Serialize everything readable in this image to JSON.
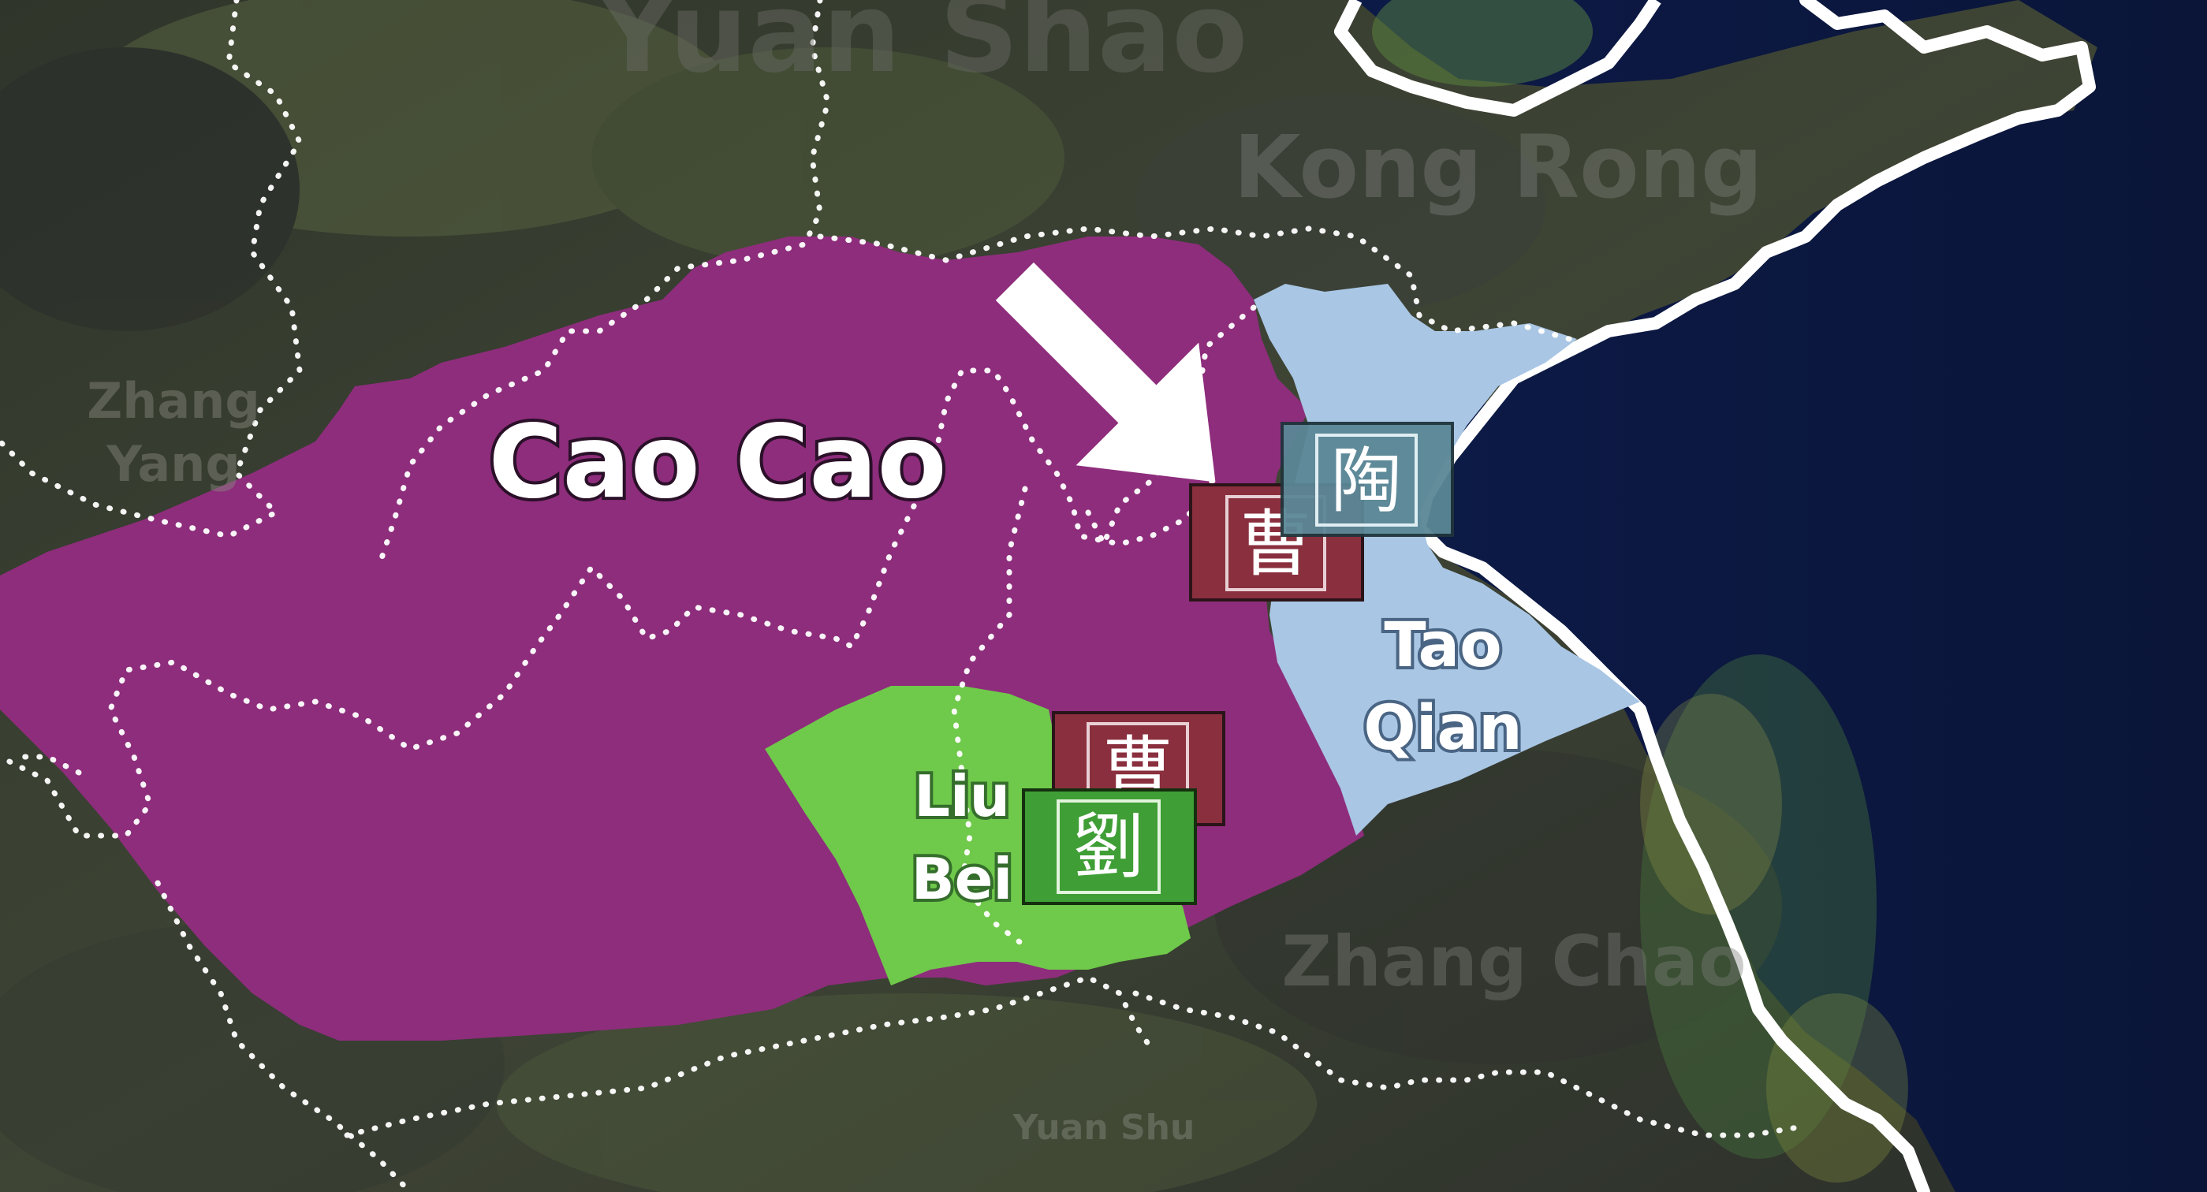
{
  "map": {
    "title_label": "Cao Cao",
    "regions": [
      {
        "id": "cao-cao",
        "name": "Cao Cao",
        "color": "#8e2d7c"
      },
      {
        "id": "tao-qian",
        "name": "Tao Qian",
        "line1": "Tao",
        "line2": "Qian",
        "color": "#a9c6e4"
      },
      {
        "id": "liu-bei",
        "name": "Liu Bei",
        "line1": "Liu",
        "line2": "Bei",
        "color": "#6fc94a"
      }
    ],
    "faded_labels": {
      "yuan_shao": "Yuan Shao",
      "kong_rong": "Kong Rong",
      "zhang_yang_1": "Zhang",
      "zhang_yang_2": "Yang",
      "zhang_chao": "Zhang Chao",
      "yuan_shu": "Yuan Shu"
    },
    "banners": {
      "cao_north": {
        "glyph": "曹",
        "color": "#8a2f3e"
      },
      "cao_south": {
        "glyph": "曹",
        "color": "#8a2f3e"
      },
      "tao": {
        "glyph": "陶",
        "color": "#5b8796"
      },
      "liu": {
        "glyph": "劉",
        "color": "#3f9e35"
      }
    },
    "colors": {
      "land": "#3b4133",
      "sea": "#0d1c4a",
      "coast": "#ffffff",
      "arrow": "#ffffff"
    }
  }
}
